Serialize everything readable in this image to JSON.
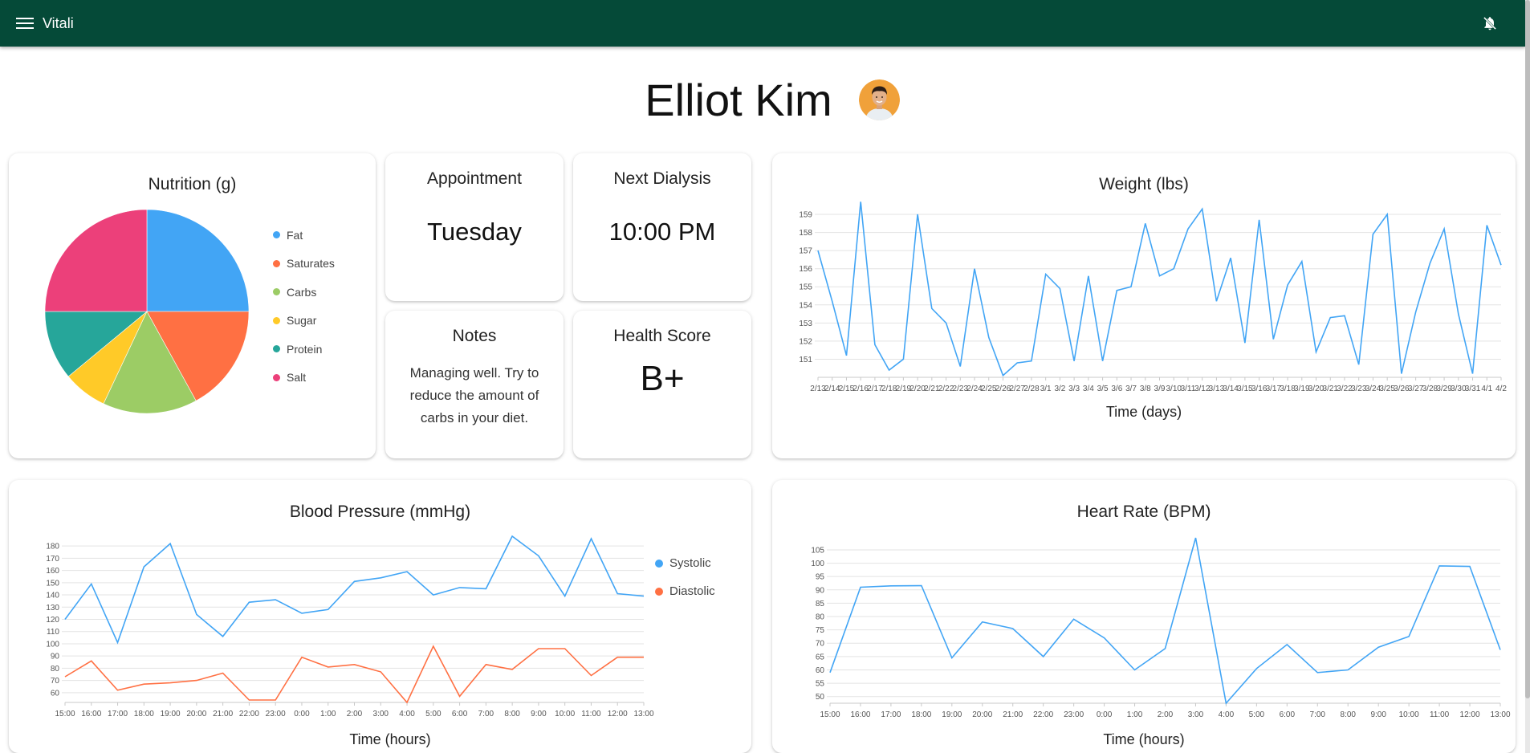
{
  "app": {
    "title": "Vitali",
    "menu_icon": "menu-icon",
    "notification_icon": "notifications-off-icon"
  },
  "user": {
    "name": "Elliot Kim",
    "avatar_icon": "avatar"
  },
  "cards": {
    "appointment": {
      "title": "Appointment",
      "value": "Tuesday"
    },
    "next_dialysis": {
      "title": "Next Dialysis",
      "value": "10:00 PM"
    },
    "notes": {
      "title": "Notes",
      "text": "Managing well. Try to reduce the amount of carbs in your diet."
    },
    "health_score": {
      "title": "Health Score",
      "value": "B+"
    }
  },
  "chart_data": [
    {
      "id": "nutrition",
      "type": "pie",
      "title": "Nutrition (g)",
      "categories": [
        "Fat",
        "Saturates",
        "Carbs",
        "Sugar",
        "Protein",
        "Salt"
      ],
      "values": [
        25,
        17,
        15,
        7,
        11,
        25
      ],
      "colors": [
        "#42a5f5",
        "#ff7043",
        "#9ccc65",
        "#ffca28",
        "#26a69a",
        "#ec407a"
      ],
      "legend": "right"
    },
    {
      "id": "weight",
      "type": "line",
      "title": "Weight (lbs)",
      "xlabel": "Time (days)",
      "ylabel": "",
      "x": [
        "2/13",
        "2/14",
        "2/15",
        "2/16",
        "2/17",
        "2/18",
        "2/19",
        "2/20",
        "2/21",
        "2/22",
        "2/23",
        "2/24",
        "2/25",
        "2/26",
        "2/27",
        "2/28",
        "3/1",
        "3/2",
        "3/3",
        "3/4",
        "3/5",
        "3/6",
        "3/7",
        "3/8",
        "3/9",
        "3/10",
        "3/11",
        "3/12",
        "3/13",
        "3/14",
        "3/15",
        "3/16",
        "3/17",
        "3/18",
        "3/19",
        "3/20",
        "3/21",
        "3/22",
        "3/23",
        "3/24",
        "3/25",
        "3/26",
        "3/27",
        "3/28",
        "3/29",
        "3/30",
        "3/31",
        "4/1",
        "4/2"
      ],
      "values": [
        157,
        154.2,
        151.2,
        159.7,
        151.8,
        150.4,
        151,
        159,
        153.8,
        153,
        150.6,
        156,
        152.2,
        150.1,
        150.8,
        150.9,
        155.7,
        154.9,
        150.9,
        155.6,
        150.9,
        154.8,
        155,
        158.5,
        155.6,
        156,
        158.2,
        159.3,
        154.2,
        156.6,
        151.9,
        158.7,
        152.1,
        155.1,
        156.4,
        151.4,
        153.3,
        153.4,
        150.7,
        157.9,
        159,
        150.2,
        153.6,
        156.3,
        158.2,
        153.5,
        150.2,
        158.4,
        156.2
      ],
      "yticks": [
        151,
        152,
        153,
        154,
        155,
        156,
        157,
        158,
        159
      ],
      "ylim": [
        150,
        159.8
      ],
      "grid": true,
      "color": "#42a5f5"
    },
    {
      "id": "blood_pressure",
      "type": "line",
      "title": "Blood Pressure (mmHg)",
      "xlabel": "Time (hours)",
      "ylabel": "",
      "x": [
        "15:00",
        "16:00",
        "17:00",
        "18:00",
        "19:00",
        "20:00",
        "21:00",
        "22:00",
        "23:00",
        "0:00",
        "1:00",
        "2:00",
        "3:00",
        "4:00",
        "5:00",
        "6:00",
        "7:00",
        "8:00",
        "9:00",
        "10:00",
        "11:00",
        "12:00",
        "13:00"
      ],
      "series": [
        {
          "name": "Systolic",
          "color": "#42a5f5",
          "values": [
            120,
            149,
            101,
            163,
            182,
            124,
            106,
            134,
            136,
            125,
            128,
            151,
            154,
            159,
            140,
            146,
            145,
            188,
            172,
            139,
            186,
            141,
            139
          ]
        },
        {
          "name": "Diastolic",
          "color": "#ff7043",
          "values": [
            73,
            86,
            62,
            67,
            68,
            70,
            76,
            54,
            54,
            89,
            81,
            83,
            77,
            52,
            98,
            57,
            83,
            79,
            96,
            96,
            74,
            89,
            89
          ]
        }
      ],
      "yticks": [
        60,
        70,
        80,
        90,
        100,
        110,
        120,
        130,
        140,
        150,
        160,
        170,
        180
      ],
      "ylim": [
        52,
        188
      ],
      "grid": true,
      "legend": "right"
    },
    {
      "id": "heart_rate",
      "type": "line",
      "title": "Heart Rate (BPM)",
      "xlabel": "Time (hours)",
      "ylabel": "",
      "x": [
        "15:00",
        "16:00",
        "17:00",
        "18:00",
        "19:00",
        "20:00",
        "21:00",
        "22:00",
        "23:00",
        "0:00",
        "1:00",
        "2:00",
        "3:00",
        "4:00",
        "5:00",
        "6:00",
        "7:00",
        "8:00",
        "9:00",
        "10:00",
        "11:00",
        "12:00",
        "13:00"
      ],
      "values": [
        59,
        91,
        91.5,
        91.6,
        64.5,
        78,
        75.5,
        65,
        79,
        72,
        60,
        68,
        109.5,
        47.5,
        60.5,
        69.5,
        59,
        60,
        68.5,
        72.5,
        99,
        98.8,
        67.5
      ],
      "yticks": [
        50,
        55,
        60,
        65,
        70,
        75,
        80,
        85,
        90,
        95,
        100,
        105
      ],
      "ylim": [
        47.5,
        109.5
      ],
      "grid": true,
      "color": "#42a5f5"
    }
  ]
}
